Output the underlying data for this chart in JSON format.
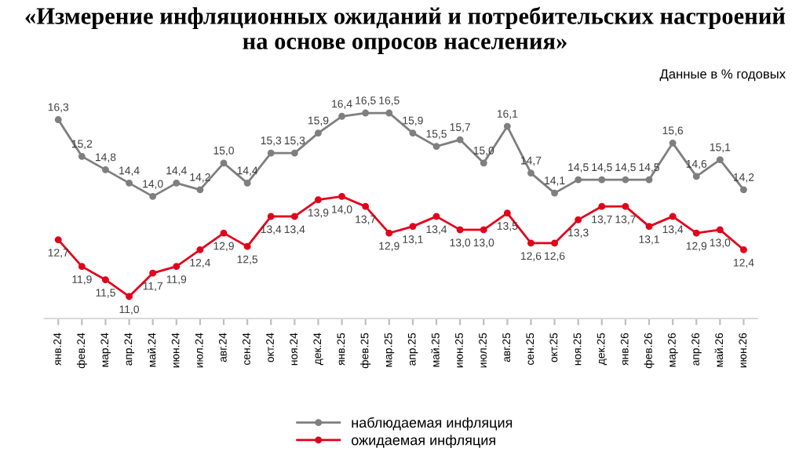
{
  "chart_data": {
    "type": "line",
    "title": "«Измерение инфляционных ожиданий и потребительских настроений\nна основе опросов населения»",
    "subtitle": "Данные в % годовых",
    "categories": [
      "янв.24",
      "фев.24",
      "мар.24",
      "апр.24",
      "май.24",
      "июн.24",
      "июл.24",
      "авг.24",
      "сен.24",
      "окт.24",
      "ноя.24",
      "дек.24",
      "янв.25",
      "фев.25",
      "мар.25",
      "апр.25",
      "май.25",
      "июн.25",
      "июл.25",
      "авг.25",
      "сен.25",
      "окт.25",
      "ноя.25",
      "дек.25",
      "янв.26",
      "фев.26",
      "мар.26",
      "апр.26",
      "май.26",
      "июн.26"
    ],
    "series": [
      {
        "name": "наблюдаемая инфляция",
        "color": "#7f7f7f",
        "values": [
          16.3,
          15.2,
          14.8,
          14.4,
          14.0,
          14.4,
          14.2,
          15.0,
          14.4,
          15.3,
          15.3,
          15.9,
          16.4,
          16.5,
          16.5,
          15.9,
          15.5,
          15.7,
          15.0,
          16.1,
          14.7,
          14.1,
          14.5,
          14.5,
          14.5,
          14.5,
          15.6,
          14.6,
          15.1,
          14.2
        ],
        "value_labels": [
          "16,3",
          "15,2",
          "14,8",
          "14,4",
          "14,0",
          "14,4",
          "14,2",
          "15,0",
          "14,4",
          "15,3",
          "15,3",
          "15,9",
          "16,4",
          "16,5",
          "16,5",
          "15,9",
          "15,5",
          "15,7",
          "15,0",
          "16,1",
          "14,7",
          "14,1",
          "14,5",
          "14,5",
          "14,5",
          "14,5",
          "15,6",
          "14,6",
          "15,1",
          "14,2"
        ]
      },
      {
        "name": "ожидаемая инфляция",
        "color": "#e3001b",
        "values": [
          12.7,
          11.9,
          11.5,
          11.0,
          11.7,
          11.9,
          12.4,
          12.9,
          12.5,
          13.4,
          13.4,
          13.9,
          14.0,
          13.7,
          12.9,
          13.1,
          13.4,
          13.0,
          13.0,
          13.5,
          12.6,
          12.6,
          13.3,
          13.7,
          13.7,
          13.1,
          13.4,
          12.9,
          13.0,
          12.4
        ],
        "value_labels": [
          "12,7",
          "11,9",
          "11,5",
          "11,0",
          "11,7",
          "11,9",
          "12,4",
          "12,9",
          "12,5",
          "13,4",
          "13,4",
          "13,9",
          "14,0",
          "13,7",
          "12,9",
          "13,1",
          "13,4",
          "13,0",
          "13,0",
          "13,5",
          "12,6",
          "12,6",
          "13,3",
          "13,7",
          "13,7",
          "13,1",
          "13,4",
          "12,9",
          "13,0",
          "12,4"
        ]
      }
    ],
    "marker": "circle",
    "line_style": "solid",
    "legend": "bottom",
    "grid": false,
    "tick_labels": "x"
  }
}
